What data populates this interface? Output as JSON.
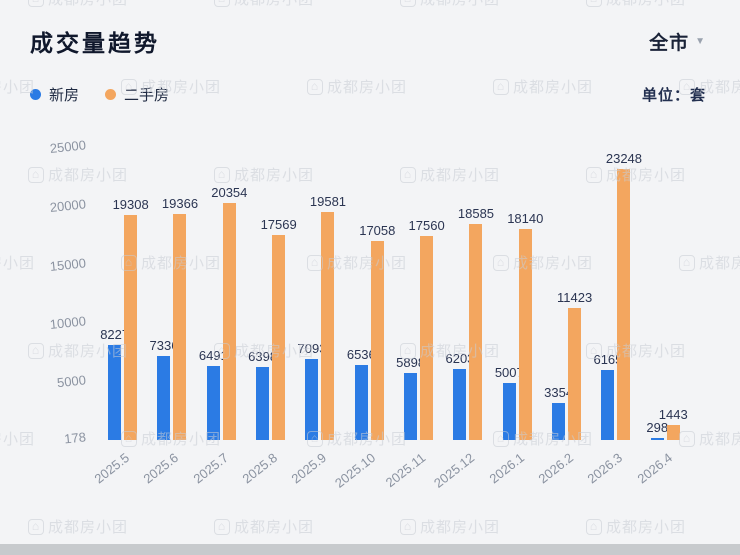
{
  "header": {
    "title": "成交量趋势",
    "region": "全市",
    "unit": "单位：套"
  },
  "legend": [
    {
      "label": "新房",
      "color": "#2b7be4"
    },
    {
      "label": "二手房",
      "color": "#f3a65f"
    }
  ],
  "chart_data": {
    "type": "bar",
    "title": "成交量趋势",
    "xlabel": "",
    "ylabel": "单位：套",
    "grid": false,
    "legend_position": "top-left",
    "categories": [
      "2025.5",
      "2025.6",
      "2025.7",
      "2025.8",
      "2025.9",
      "2025.10",
      "2025.11",
      "2025.12",
      "2026.1",
      "2026.2",
      "2026.3",
      "2026.4"
    ],
    "series": [
      {
        "name": "新房",
        "color": "#2b7be4",
        "values": [
          8227,
          7336,
          6491,
          6398,
          7093,
          6536,
          5898,
          6203,
          5007,
          3354,
          6165,
          298
        ]
      },
      {
        "name": "二手房",
        "color": "#f3a65f",
        "values": [
          19308,
          19366,
          20354,
          17569,
          19581,
          17058,
          17560,
          18585,
          18140,
          11423,
          23248,
          1443
        ]
      }
    ],
    "yticks": [
      178,
      5000,
      10000,
      15000,
      20000,
      25000
    ],
    "ylim": [
      178,
      25000
    ]
  },
  "watermark": {
    "icon": "⌂",
    "text": "成都房小团"
  },
  "colors": {
    "background": "#f3f4f6",
    "new_home": "#2b7be4",
    "second_hand": "#f3a65f",
    "axis_text": "#8b93a1",
    "value_text": "#2b3552"
  }
}
